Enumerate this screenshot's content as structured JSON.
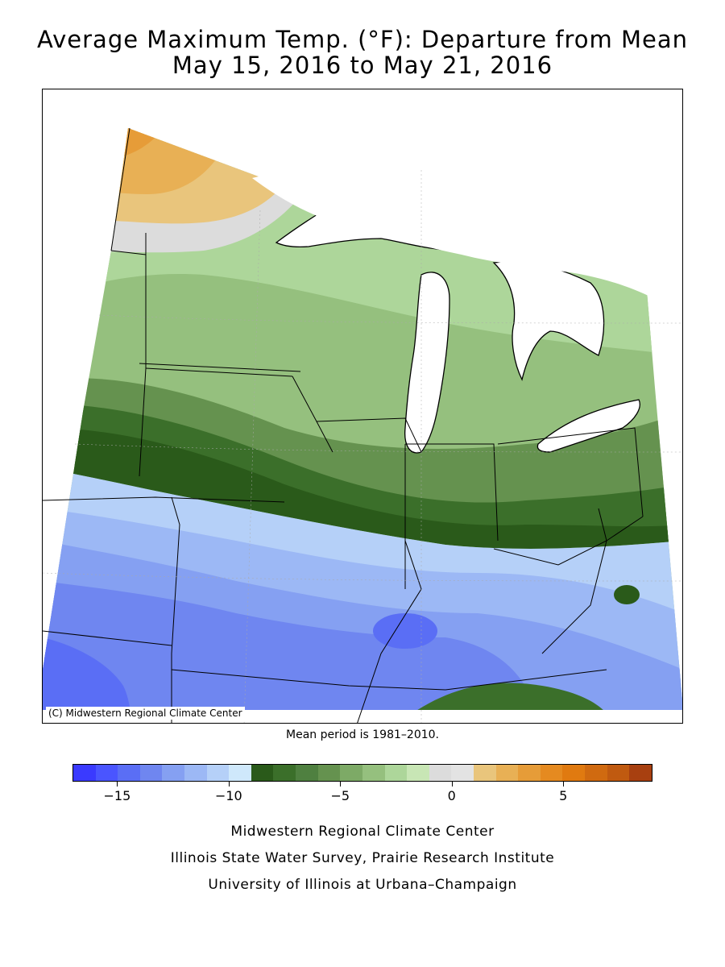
{
  "header": {
    "title_line1": "Average Maximum Temp. (°F): Departure from Mean",
    "title_line2": "May 15, 2016 to May 21, 2016"
  },
  "map": {
    "copyright": "(C) Midwestern Regional Climate Center",
    "mean_period": "Mean period is 1981–2010."
  },
  "legend": {
    "colors": [
      "#3a3aff",
      "#4a55ff",
      "#5a6ef5",
      "#6f86f0",
      "#85a0f2",
      "#9cb8f5",
      "#b5d0f8",
      "#cfe8fb",
      "#2a5a1a",
      "#3b6f2a",
      "#4f8040",
      "#65924f",
      "#7daa66",
      "#95c07e",
      "#add69a",
      "#c8e6b5",
      "#dcdcdc",
      "#e3e3e3",
      "#e9c57c",
      "#e8b055",
      "#e69c38",
      "#e58a20",
      "#e07a10",
      "#d06a10",
      "#c05a10",
      "#a84010"
    ],
    "ticks": [
      {
        "label": "−15",
        "value": -15
      },
      {
        "label": "−10",
        "value": -10
      },
      {
        "label": "−5",
        "value": -5
      },
      {
        "label": "0",
        "value": 0
      },
      {
        "label": "5",
        "value": 5
      }
    ],
    "range": [
      -17,
      9
    ]
  },
  "credits": {
    "line1": "Midwestern Regional Climate Center",
    "line2": "Illinois State Water Survey, Prairie Research Institute",
    "line3": "University of Illinois at Urbana–Champaign"
  }
}
